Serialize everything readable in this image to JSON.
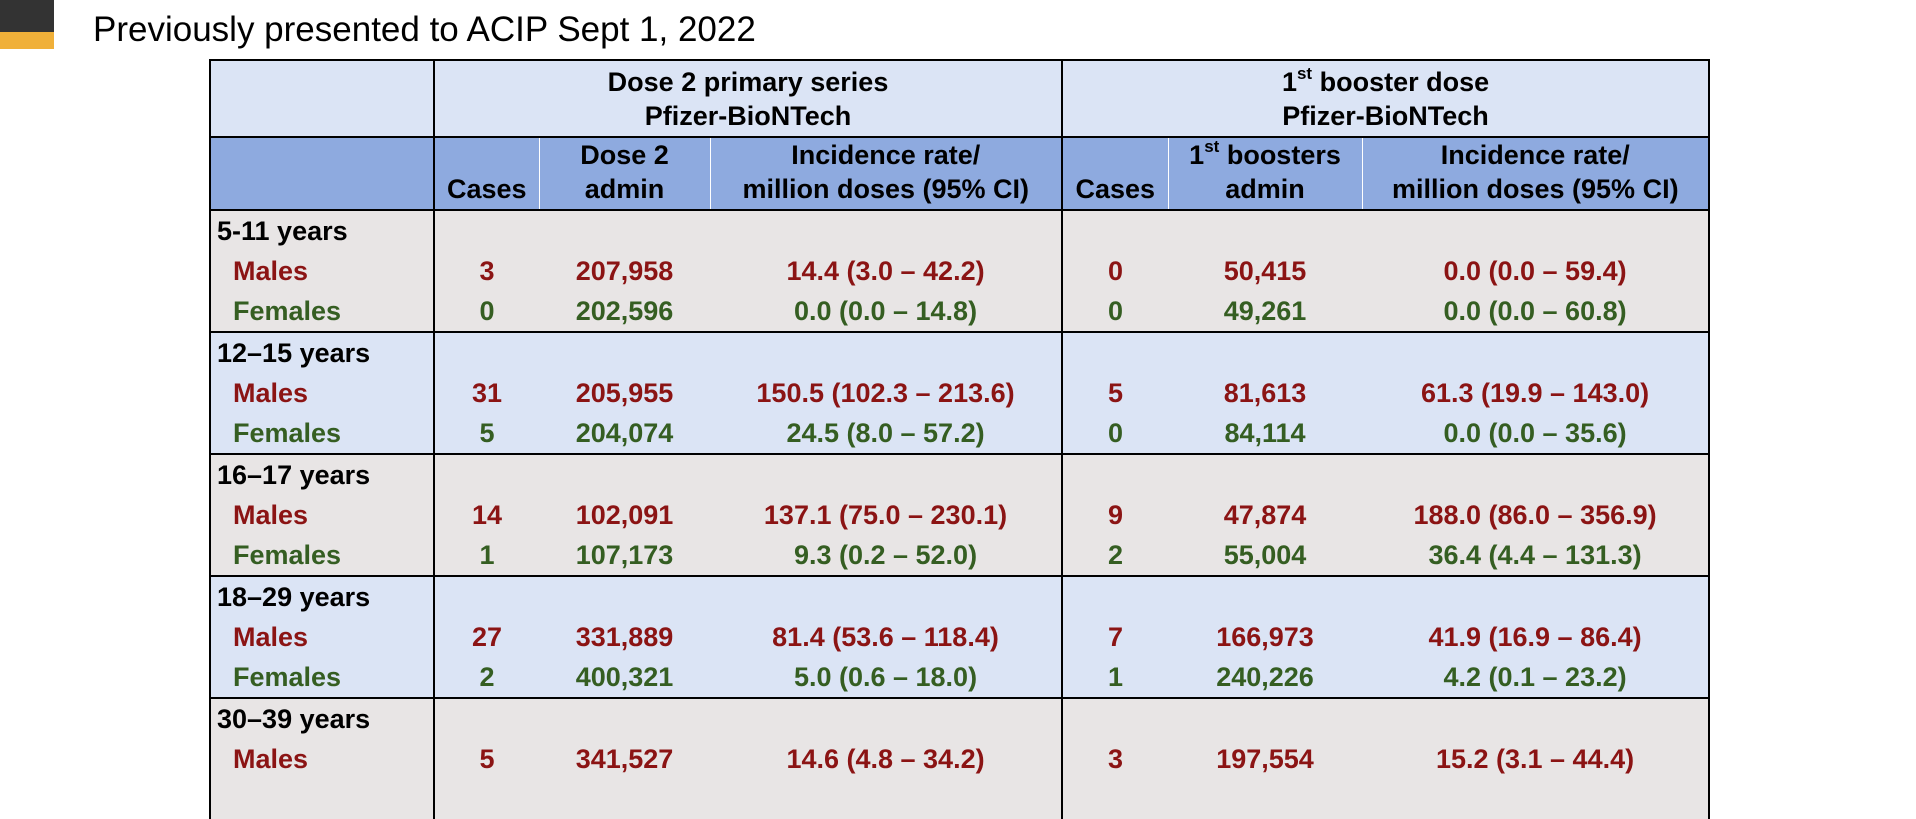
{
  "slide": {
    "subtitle": "Previously presented to ACIP Sept 1, 2022"
  },
  "table": {
    "group_headers": {
      "primary": {
        "line1": "Dose 2 primary series",
        "line2": "Pfizer-BioNTech"
      },
      "booster": {
        "line1_prefix": "1",
        "line1_sup": "st",
        "line1_suffix": " booster dose",
        "line2": "Pfizer-BioNTech"
      }
    },
    "columns": {
      "cases": "Cases",
      "dose2_admin_line1": "Dose 2",
      "dose2_admin_line2": "admin",
      "rate_line1": "Incidence rate/",
      "rate_line2": "million doses (95% CI)",
      "boost_admin_prefix": "1",
      "boost_admin_sup": "st",
      "boost_admin_suffix": " boosters",
      "boost_admin_line2": "admin"
    },
    "groups": [
      {
        "age": "5-11 years",
        "males": {
          "label": "Males",
          "cases": "3",
          "admin": "207,958",
          "rate": "14.4 (3.0 – 42.2)",
          "b_cases": "0",
          "b_admin": "50,415",
          "b_rate": "0.0 (0.0 – 59.4)"
        },
        "females": {
          "label": "Females",
          "cases": "0",
          "admin": "202,596",
          "rate": "0.0 (0.0 – 14.8)",
          "b_cases": "0",
          "b_admin": "49,261",
          "b_rate": "0.0 (0.0 – 60.8)"
        }
      },
      {
        "age": "12–15 years",
        "males": {
          "label": "Males",
          "cases": "31",
          "admin": "205,955",
          "rate": "150.5 (102.3 – 213.6)",
          "b_cases": "5",
          "b_admin": "81,613",
          "b_rate": "61.3 (19.9 – 143.0)"
        },
        "females": {
          "label": "Females",
          "cases": "5",
          "admin": "204,074",
          "rate": "24.5 (8.0 – 57.2)",
          "b_cases": "0",
          "b_admin": "84,114",
          "b_rate": "0.0 (0.0 – 35.6)"
        }
      },
      {
        "age": "16–17 years",
        "males": {
          "label": "Males",
          "cases": "14",
          "admin": "102,091",
          "rate": "137.1 (75.0 – 230.1)",
          "b_cases": "9",
          "b_admin": "47,874",
          "b_rate": "188.0 (86.0 – 356.9)"
        },
        "females": {
          "label": "Females",
          "cases": "1",
          "admin": "107,173",
          "rate": "9.3 (0.2 – 52.0)",
          "b_cases": "2",
          "b_admin": "55,004",
          "b_rate": "36.4 (4.4 – 131.3)"
        }
      },
      {
        "age": "18–29 years",
        "males": {
          "label": "Males",
          "cases": "27",
          "admin": "331,889",
          "rate": "81.4 (53.6 – 118.4)",
          "b_cases": "7",
          "b_admin": "166,973",
          "b_rate": "41.9 (16.9 – 86.4)"
        },
        "females": {
          "label": "Females",
          "cases": "2",
          "admin": "400,321",
          "rate": "5.0 (0.6 – 18.0)",
          "b_cases": "1",
          "b_admin": "240,226",
          "b_rate": "4.2 (0.1 – 23.2)"
        }
      },
      {
        "age": "30–39 years",
        "males": {
          "label": "Males",
          "cases": "5",
          "admin": "341,527",
          "rate": "14.6 (4.8 – 34.2)",
          "b_cases": "3",
          "b_admin": "197,554",
          "b_rate": "15.2 (3.1 – 44.4)"
        }
      }
    ]
  },
  "colors": {
    "male_text": "#8b1414",
    "female_text": "#355e22",
    "header_light": "#dbe4f5",
    "header_dark": "#8eaadf",
    "row_gray": "#e8e5e5",
    "accent_orange": "#f0b039"
  }
}
